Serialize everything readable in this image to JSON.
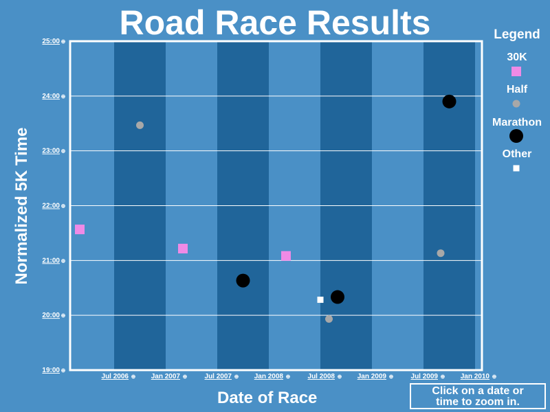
{
  "title": "Road Race Results",
  "zoom_hint": [
    "Click on a date or",
    "time to zoom in."
  ],
  "legend": {
    "title": "Legend",
    "items": [
      {
        "label": "30K",
        "shape": "square",
        "color": "#ef8ae6"
      },
      {
        "label": "Half",
        "shape": "circle",
        "color": "#a8a8a8"
      },
      {
        "label": "Marathon",
        "shape": "big-circle",
        "color": "#000000"
      },
      {
        "label": "Other",
        "shape": "small-square",
        "color": "#ffffff"
      }
    ]
  },
  "colors": {
    "background": "#4a90c6",
    "band_dark": "#20659a",
    "band_light": "#4a90c6",
    "grid": "#ffffff"
  },
  "chart_data": {
    "type": "scatter",
    "xlabel": "Date of Race",
    "ylabel": "Normalized 5K Time",
    "x_ticks": [
      "Jul 2006",
      "Jan 2007",
      "Jul 2007",
      "Jan 2008",
      "Jul 2008",
      "Jan 2009",
      "Jul 2009",
      "Jan 2010"
    ],
    "y_ticks": [
      "19:00",
      "20:00",
      "21:00",
      "22:00",
      "23:00",
      "24:00",
      "25:00"
    ],
    "ylim_minutes": [
      19,
      25
    ],
    "grid": true,
    "series": [
      {
        "name": "30K",
        "points": [
          {
            "date": "2006-03",
            "time": "21:34"
          },
          {
            "date": "2007-03",
            "time": "21:13"
          },
          {
            "date": "2008-03",
            "time": "21:05"
          }
        ]
      },
      {
        "name": "Half",
        "points": [
          {
            "date": "2006-10",
            "time": "23:28"
          },
          {
            "date": "2008-08",
            "time": "19:56"
          },
          {
            "date": "2009-09",
            "time": "21:08"
          }
        ]
      },
      {
        "name": "Marathon",
        "points": [
          {
            "date": "2007-10",
            "time": "20:38"
          },
          {
            "date": "2008-09",
            "time": "20:20"
          },
          {
            "date": "2009-10",
            "time": "23:54"
          }
        ]
      },
      {
        "name": "Other",
        "points": [
          {
            "date": "2008-07",
            "time": "20:17"
          }
        ]
      }
    ]
  }
}
